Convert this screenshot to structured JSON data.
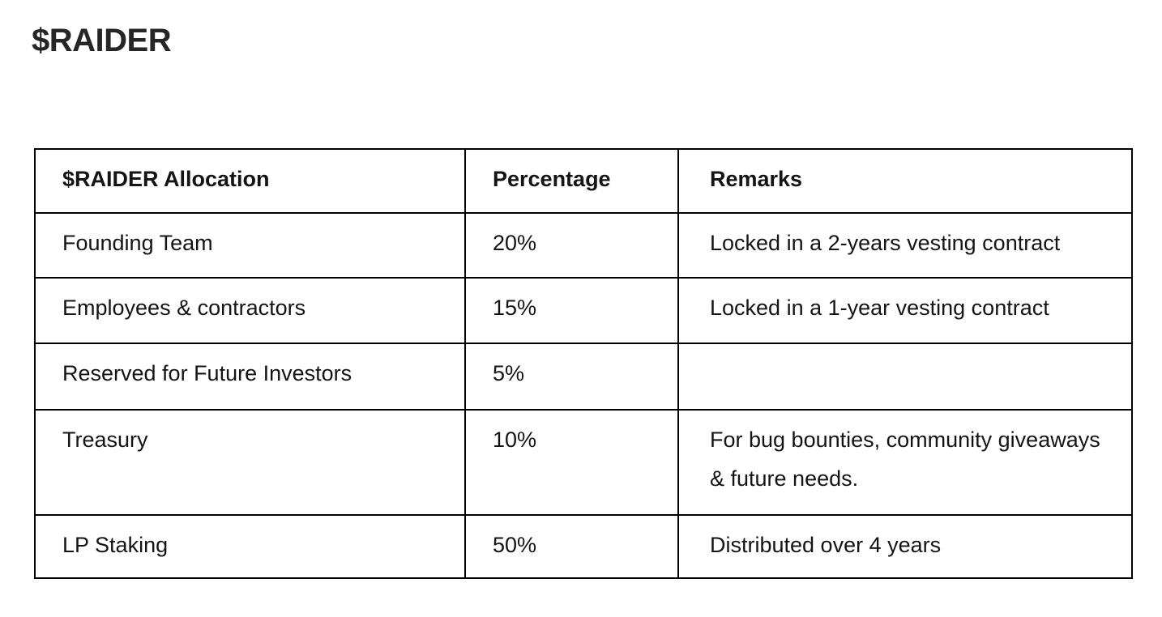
{
  "page": {
    "title": "$RAIDER"
  },
  "table": {
    "headers": {
      "allocation": "$RAIDER Allocation",
      "percentage": "Percentage",
      "remarks": "Remarks"
    },
    "rows": [
      {
        "allocation": "Founding Team",
        "percentage": "20%",
        "remarks": "Locked in a 2-years vesting contract"
      },
      {
        "allocation": "Employees & contractors",
        "percentage": "15%",
        "remarks": "Locked in a 1-year vesting contract"
      },
      {
        "allocation": "Reserved for Future Investors",
        "percentage": "5%",
        "remarks": ""
      },
      {
        "allocation": "Treasury",
        "percentage": "10%",
        "remarks": "For bug bounties, community giveaways & future needs."
      },
      {
        "allocation": "LP Staking",
        "percentage": "50%",
        "remarks": "Distributed over 4 years"
      }
    ]
  },
  "colors": {
    "background": "#ffffff",
    "text": "#141414",
    "title": "#262626",
    "table_border": "#000000"
  }
}
